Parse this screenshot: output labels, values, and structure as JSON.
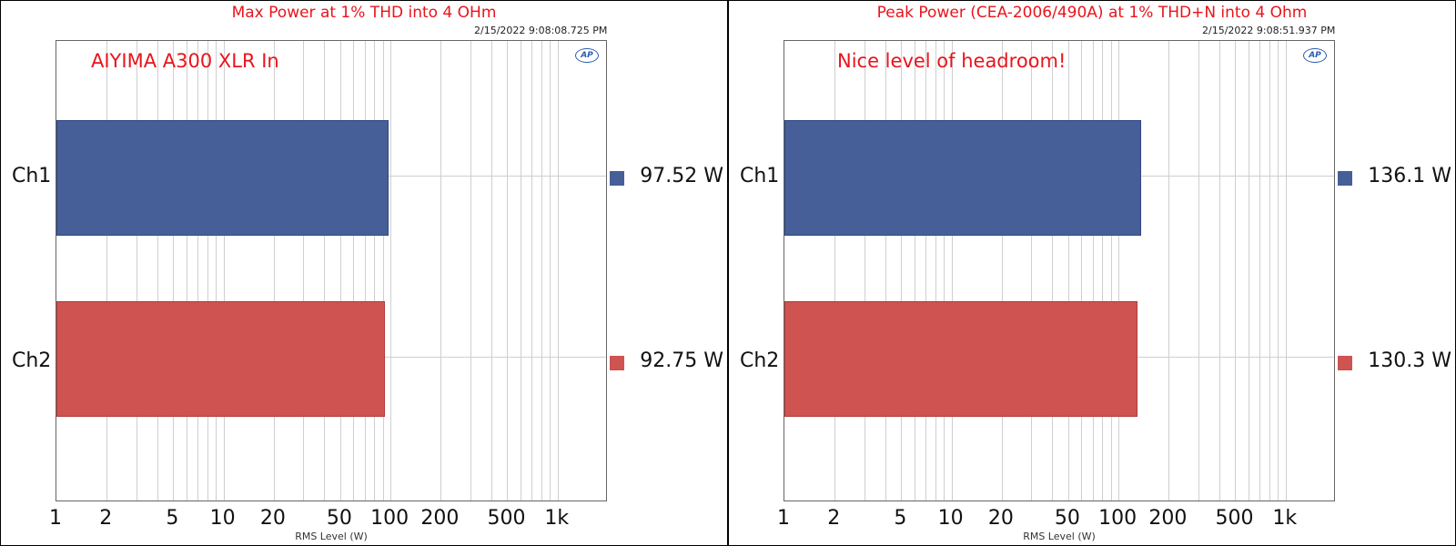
{
  "colors": {
    "ch1": "#475f98",
    "ch2": "#cf5350",
    "title": "#e8141c"
  },
  "chart_data": [
    {
      "type": "bar",
      "orientation": "horizontal",
      "title": "Max Power at 1% THD into 4 OHm",
      "timestamp": "2/15/2022 9:08:08.725 PM",
      "annotation": "AIYIMA A300 XLR In",
      "logo_text": "AP",
      "xlabel": "RMS Level (W)",
      "xscale": "log",
      "xlim": [
        1,
        2000
      ],
      "xticks": [
        1,
        2,
        5,
        10,
        20,
        50,
        100,
        200,
        500,
        1000
      ],
      "xtick_labels": [
        "1",
        "2",
        "5",
        "10",
        "20",
        "50",
        "100",
        "200",
        "500",
        "1k"
      ],
      "categories": [
        "Ch1",
        "Ch2"
      ],
      "values": [
        97.52,
        92.75
      ],
      "value_labels": [
        "97.52  W",
        "92.75  W"
      ],
      "grid": true
    },
    {
      "type": "bar",
      "orientation": "horizontal",
      "title": "Peak Power (CEA-2006/490A) at 1% THD+N into 4 Ohm",
      "timestamp": "2/15/2022 9:08:51.937 PM",
      "annotation": "Nice level of headroom!",
      "logo_text": "AP",
      "xlabel": "RMS Level (W)",
      "xscale": "log",
      "xlim": [
        1,
        2000
      ],
      "xticks": [
        1,
        2,
        5,
        10,
        20,
        50,
        100,
        200,
        500,
        1000
      ],
      "xtick_labels": [
        "1",
        "2",
        "5",
        "10",
        "20",
        "50",
        "100",
        "200",
        "500",
        "1k"
      ],
      "categories": [
        "Ch1",
        "Ch2"
      ],
      "values": [
        136.1,
        130.3
      ],
      "value_labels": [
        "136.1  W",
        "130.3  W"
      ],
      "grid": true
    }
  ]
}
